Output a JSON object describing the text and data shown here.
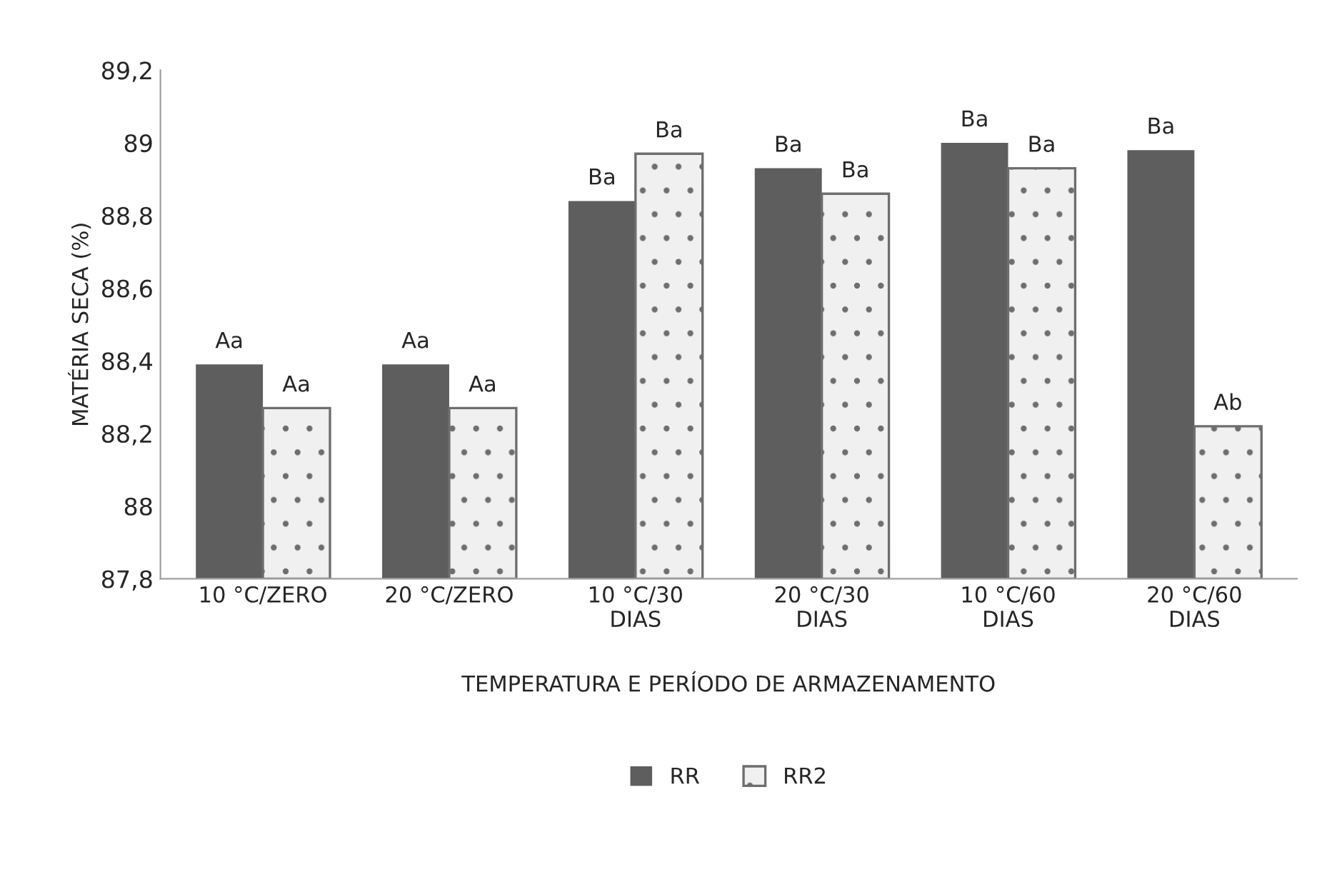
{
  "chart_data": {
    "type": "bar",
    "xlabel": "TEMPERATURA E PERÍODO DE ARMAZENAMENTO",
    "ylabel": "MATÉRIA SECA (%)",
    "categories": [
      "10 °C/ZERO",
      "20 °C/ZERO",
      "10 °C/30\nDIAS",
      "20 °C/30\nDIAS",
      "10 °C/60\nDIAS",
      "20 °C/60\nDIAS"
    ],
    "series": [
      {
        "name": "RR",
        "color": "#5e5e5e",
        "values": [
          88.39,
          88.39,
          88.84,
          88.93,
          89.0,
          88.98
        ],
        "value_labels": [
          "Aa",
          "Aa",
          "Ba",
          "Ba",
          "Ba",
          "Ba"
        ]
      },
      {
        "name": "RR2",
        "color": "#f0f0f0",
        "values": [
          88.27,
          88.27,
          88.97,
          88.86,
          88.93,
          88.22
        ],
        "value_labels": [
          "Aa",
          "Aa",
          "Ba",
          "Ba",
          "Ba",
          "Ab"
        ]
      }
    ],
    "ylim": [
      87.8,
      89.2
    ],
    "yticks": [
      {
        "value": 87.8,
        "label": "87,8"
      },
      {
        "value": 88,
        "label": "88"
      },
      {
        "value": 88.2,
        "label": "88,2"
      },
      {
        "value": 88.4,
        "label": "88,4"
      },
      {
        "value": 88.6,
        "label": "88,6"
      },
      {
        "value": 88.8,
        "label": "88,8"
      },
      {
        "value": 89,
        "label": "89"
      },
      {
        "value": 89.2,
        "label": "89,2"
      }
    ],
    "grid": false,
    "legend": "bottom"
  }
}
